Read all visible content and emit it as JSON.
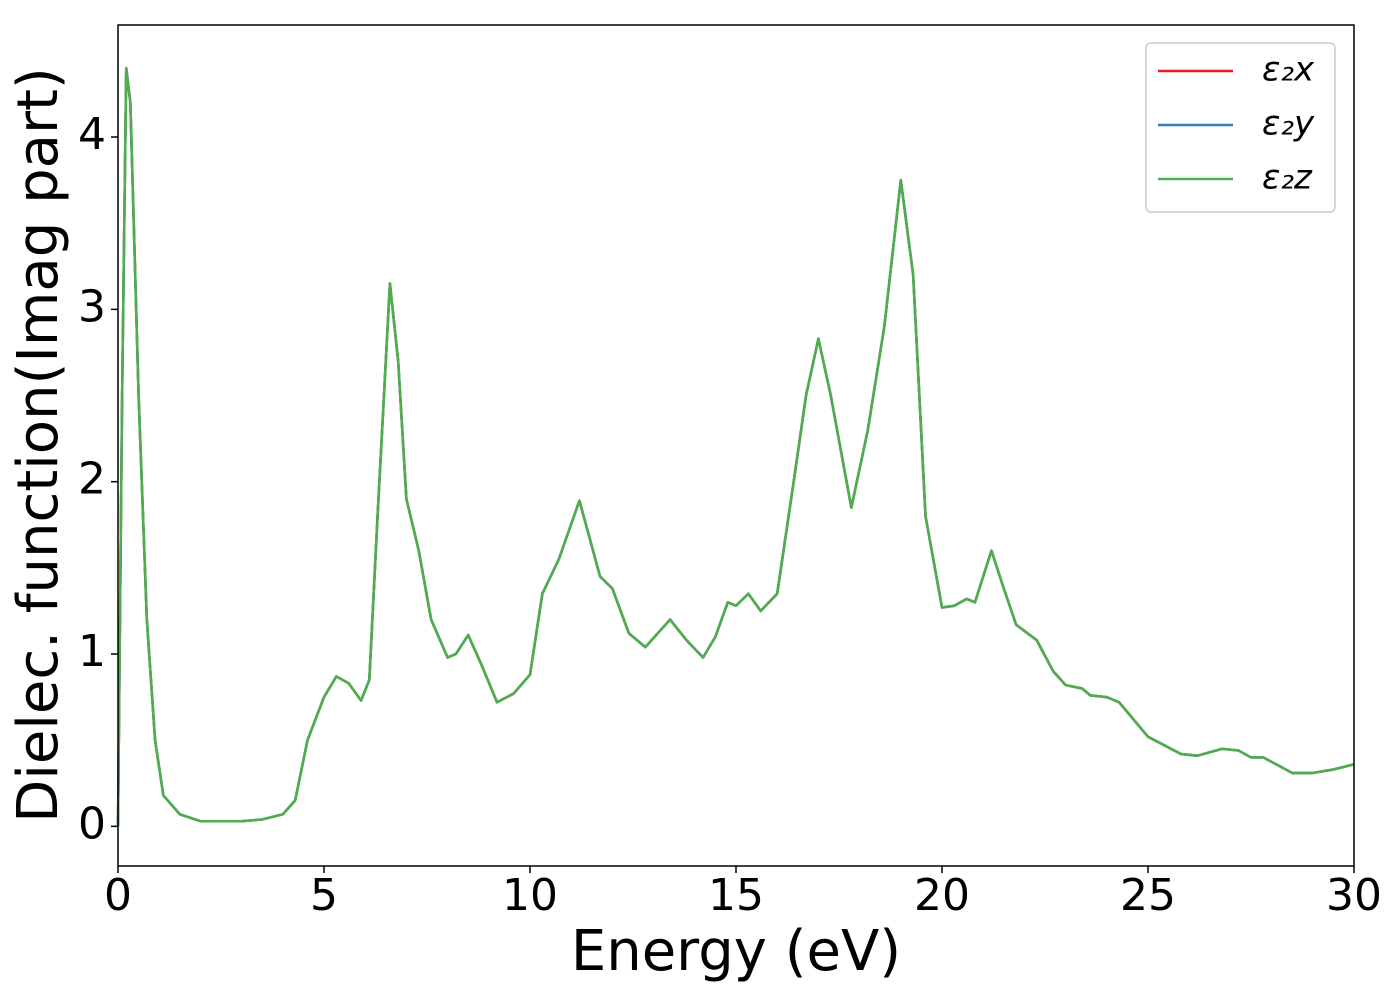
{
  "chart_data": {
    "type": "line",
    "xlabel": "Energy (eV)",
    "ylabel": "Dielec. function(Imag part)",
    "x": [
      0,
      0.1,
      0.2,
      0.3,
      0.5,
      0.7,
      0.9,
      1.1,
      1.5,
      2,
      3,
      3.5,
      4,
      4.3,
      4.6,
      5,
      5.3,
      5.6,
      5.9,
      6.1,
      6.3,
      6.6,
      6.8,
      7,
      7.3,
      7.6,
      8,
      8.2,
      8.5,
      8.8,
      9.2,
      9.6,
      10,
      10.3,
      10.7,
      11.2,
      11.7,
      12,
      12.4,
      12.8,
      13.4,
      13.8,
      14.2,
      14.5,
      14.8,
      15,
      15.3,
      15.6,
      16,
      16.4,
      16.7,
      17,
      17.3,
      17.8,
      18.2,
      18.6,
      19,
      19.3,
      19.6,
      20,
      20.3,
      20.6,
      20.8,
      21.2,
      21.5,
      21.8,
      22.3,
      22.7,
      23,
      23.4,
      23.6,
      24,
      24.3,
      25,
      25.8,
      26.2,
      26.8,
      27.2,
      27.5,
      27.8,
      28.5,
      29,
      29.5,
      30
    ],
    "series": [
      {
        "name": "ε₂x",
        "color": "#e41a1c",
        "values": [
          0,
          2.5,
          4.4,
          4.2,
          2.5,
          1.2,
          0.5,
          0.18,
          0.07,
          0.03,
          0.03,
          0.04,
          0.07,
          0.15,
          0.5,
          0.75,
          0.87,
          0.83,
          0.73,
          0.85,
          1.8,
          3.15,
          2.7,
          1.9,
          1.6,
          1.2,
          0.98,
          1.0,
          1.11,
          0.95,
          0.72,
          0.77,
          0.88,
          1.35,
          1.55,
          1.89,
          1.45,
          1.38,
          1.12,
          1.04,
          1.2,
          1.08,
          0.98,
          1.1,
          1.3,
          1.28,
          1.35,
          1.25,
          1.35,
          2.0,
          2.5,
          2.83,
          2.5,
          1.85,
          2.3,
          2.9,
          3.75,
          3.2,
          1.8,
          1.27,
          1.28,
          1.32,
          1.3,
          1.6,
          1.38,
          1.17,
          1.08,
          0.9,
          0.82,
          0.8,
          0.76,
          0.75,
          0.72,
          0.52,
          0.42,
          0.41,
          0.45,
          0.44,
          0.4,
          0.4,
          0.31,
          0.31,
          0.33,
          0.36
        ]
      },
      {
        "name": "ε₂y",
        "color": "#377eb8",
        "values": [
          0,
          2.5,
          4.4,
          4.2,
          2.5,
          1.2,
          0.5,
          0.18,
          0.07,
          0.03,
          0.03,
          0.04,
          0.07,
          0.15,
          0.5,
          0.75,
          0.87,
          0.83,
          0.73,
          0.85,
          1.8,
          3.15,
          2.7,
          1.9,
          1.6,
          1.2,
          0.98,
          1.0,
          1.11,
          0.95,
          0.72,
          0.77,
          0.88,
          1.35,
          1.55,
          1.89,
          1.45,
          1.38,
          1.12,
          1.04,
          1.2,
          1.08,
          0.98,
          1.1,
          1.3,
          1.28,
          1.35,
          1.25,
          1.35,
          2.0,
          2.5,
          2.83,
          2.5,
          1.85,
          2.3,
          2.9,
          3.75,
          3.2,
          1.8,
          1.27,
          1.28,
          1.32,
          1.3,
          1.6,
          1.38,
          1.17,
          1.08,
          0.9,
          0.82,
          0.8,
          0.76,
          0.75,
          0.72,
          0.52,
          0.42,
          0.41,
          0.45,
          0.44,
          0.4,
          0.4,
          0.31,
          0.31,
          0.33,
          0.36
        ]
      },
      {
        "name": "ε₂z",
        "color": "#4daf4a",
        "values": [
          0,
          2.5,
          4.4,
          4.2,
          2.5,
          1.2,
          0.5,
          0.18,
          0.07,
          0.03,
          0.03,
          0.04,
          0.07,
          0.15,
          0.5,
          0.75,
          0.87,
          0.83,
          0.73,
          0.85,
          1.8,
          3.15,
          2.7,
          1.9,
          1.6,
          1.2,
          0.98,
          1.0,
          1.11,
          0.95,
          0.72,
          0.77,
          0.88,
          1.35,
          1.55,
          1.89,
          1.45,
          1.38,
          1.12,
          1.04,
          1.2,
          1.08,
          0.98,
          1.1,
          1.3,
          1.28,
          1.35,
          1.25,
          1.35,
          2.0,
          2.5,
          2.83,
          2.5,
          1.85,
          2.3,
          2.9,
          3.75,
          3.2,
          1.8,
          1.27,
          1.28,
          1.32,
          1.3,
          1.6,
          1.38,
          1.17,
          1.08,
          0.9,
          0.82,
          0.8,
          0.76,
          0.75,
          0.72,
          0.52,
          0.42,
          0.41,
          0.45,
          0.44,
          0.4,
          0.4,
          0.31,
          0.31,
          0.33,
          0.36
        ]
      }
    ],
    "xlim": [
      0,
      30
    ],
    "xticks": [
      0,
      5,
      10,
      15,
      20,
      25,
      30
    ],
    "ylim": [
      -0.23,
      4.65
    ],
    "yticks": [
      0,
      1,
      2,
      3,
      4
    ],
    "legend": "upper right",
    "grid": false
  }
}
